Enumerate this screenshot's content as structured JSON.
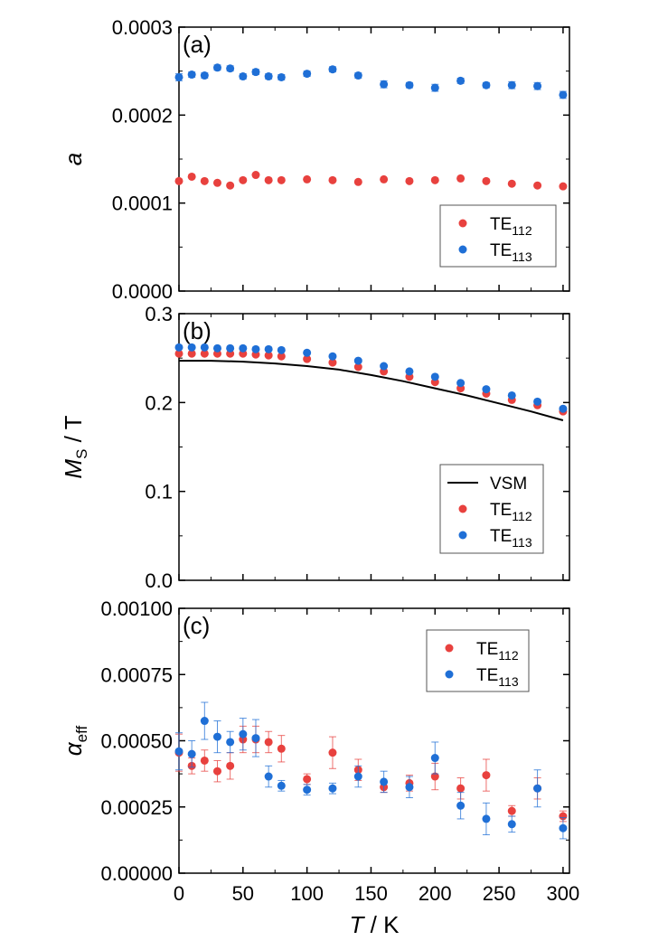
{
  "colors": {
    "te112": "#e8413e",
    "te113": "#1f6fd6",
    "vsm": "#000000"
  },
  "chart_data": [
    {
      "type": "scatter",
      "panel_label": "(a)",
      "ylabel_main": "a",
      "ylabel_sub": "",
      "ylabel_style": "italic",
      "ylim": [
        0,
        0.0003
      ],
      "yticks": [
        0.0,
        0.0001,
        0.0002,
        0.0003
      ],
      "ytick_labels": [
        "0.0000",
        "0.0001",
        "0.0002",
        "0.0003"
      ],
      "xlim": [
        0,
        305
      ],
      "legend_position": "bottom-right",
      "series": [
        {
          "name": "TE",
          "sub": "112",
          "color_key": "te112",
          "x": [
            0,
            10,
            20,
            30,
            40,
            50,
            60,
            70,
            80,
            100,
            120,
            140,
            160,
            180,
            200,
            220,
            240,
            260,
            280,
            300
          ],
          "y": [
            0.000125,
            0.00013,
            0.000125,
            0.000123,
            0.00012,
            0.000126,
            0.000132,
            0.000126,
            0.000126,
            0.000127,
            0.000126,
            0.000124,
            0.000127,
            0.000125,
            0.000126,
            0.000128,
            0.000125,
            0.000122,
            0.00012,
            0.000119
          ],
          "err": []
        },
        {
          "name": "TE",
          "sub": "113",
          "color_key": "te113",
          "x": [
            0,
            10,
            20,
            30,
            40,
            50,
            60,
            70,
            80,
            100,
            120,
            140,
            160,
            180,
            200,
            220,
            240,
            260,
            280,
            300
          ],
          "y": [
            0.000243,
            0.000246,
            0.000245,
            0.000254,
            0.000253,
            0.000244,
            0.000249,
            0.000244,
            0.000243,
            0.000247,
            0.000252,
            0.000245,
            0.000235,
            0.000234,
            0.000231,
            0.000239,
            0.000234,
            0.000234,
            0.000233,
            0.000223
          ],
          "err": [
            4e-06,
            3e-06,
            3e-06,
            3e-06,
            3e-06,
            3e-06,
            3e-06,
            3e-06,
            3e-06,
            3e-06,
            3e-06,
            3e-06,
            4e-06,
            3e-06,
            4e-06,
            3e-06,
            3e-06,
            4e-06,
            4e-06,
            4e-06
          ]
        }
      ]
    },
    {
      "type": "scatter",
      "panel_label": "(b)",
      "ylabel_main": "M",
      "ylabel_sub": "S",
      "ylabel_rest": " / T",
      "ylabel_style": "italic",
      "ylim": [
        0,
        0.3
      ],
      "yticks": [
        0.0,
        0.1,
        0.2,
        0.3
      ],
      "ytick_labels": [
        "0.0",
        "0.1",
        "0.2",
        "0.3"
      ],
      "xlim": [
        0,
        305
      ],
      "legend_position": "bottom-right",
      "line": {
        "name": "VSM",
        "color_key": "vsm",
        "x": [
          0,
          25,
          50,
          75,
          100,
          125,
          150,
          175,
          200,
          225,
          250,
          275,
          300
        ],
        "y": [
          0.247,
          0.247,
          0.246,
          0.244,
          0.241,
          0.237,
          0.231,
          0.224,
          0.216,
          0.208,
          0.199,
          0.19,
          0.18
        ]
      },
      "series": [
        {
          "name": "TE",
          "sub": "112",
          "color_key": "te112",
          "x": [
            0,
            10,
            20,
            30,
            40,
            50,
            60,
            70,
            80,
            100,
            120,
            140,
            160,
            180,
            200,
            220,
            240,
            260,
            280,
            300
          ],
          "y": [
            0.255,
            0.255,
            0.255,
            0.255,
            0.255,
            0.255,
            0.254,
            0.253,
            0.252,
            0.249,
            0.245,
            0.24,
            0.235,
            0.229,
            0.223,
            0.216,
            0.21,
            0.203,
            0.197,
            0.19
          ],
          "err": []
        },
        {
          "name": "TE",
          "sub": "113",
          "color_key": "te113",
          "x": [
            0,
            10,
            20,
            30,
            40,
            50,
            60,
            70,
            80,
            100,
            120,
            140,
            160,
            180,
            200,
            220,
            240,
            260,
            280,
            300
          ],
          "y": [
            0.262,
            0.262,
            0.262,
            0.261,
            0.261,
            0.261,
            0.26,
            0.26,
            0.259,
            0.256,
            0.252,
            0.247,
            0.241,
            0.235,
            0.229,
            0.222,
            0.215,
            0.208,
            0.201,
            0.193
          ],
          "err": []
        }
      ]
    },
    {
      "type": "scatter",
      "panel_label": "(c)",
      "ylabel_main": "α",
      "ylabel_sub": "eff",
      "ylabel_style": "italic",
      "xlabel_main": "T",
      "xlabel_rest": " / K",
      "ylim": [
        0,
        0.001
      ],
      "yticks": [
        0,
        0.00025,
        0.0005,
        0.00075,
        0.001
      ],
      "ytick_labels": [
        "0.00000",
        "0.00025",
        "0.00050",
        "0.00075",
        "0.00100"
      ],
      "xlim": [
        0,
        305
      ],
      "xticks": [
        0,
        50,
        100,
        150,
        200,
        250,
        300
      ],
      "xtick_labels": [
        "0",
        "50",
        "100",
        "150",
        "200",
        "250",
        "300"
      ],
      "legend_position": "top-right",
      "series": [
        {
          "name": "TE",
          "sub": "112",
          "color_key": "te112",
          "x": [
            0,
            10,
            20,
            30,
            40,
            50,
            60,
            70,
            80,
            100,
            120,
            140,
            160,
            180,
            200,
            220,
            240,
            260,
            280,
            300
          ],
          "y": [
            0.000455,
            0.000405,
            0.000425,
            0.000385,
            0.000405,
            0.000505,
            0.000505,
            0.000495,
            0.00047,
            0.000355,
            0.000455,
            0.00039,
            0.000325,
            0.00034,
            0.000365,
            0.00032,
            0.00037,
            0.000235,
            0.00032,
            0.000215
          ],
          "err": [
            7e-05,
            3e-05,
            4e-05,
            4e-05,
            5e-05,
            5e-05,
            5e-05,
            4e-05,
            5e-05,
            2e-05,
            6e-05,
            4e-05,
            2e-05,
            3e-05,
            5e-05,
            4e-05,
            6e-05,
            2e-05,
            4e-05,
            2e-05
          ]
        },
        {
          "name": "TE",
          "sub": "113",
          "color_key": "te113",
          "x": [
            0,
            10,
            20,
            30,
            40,
            50,
            60,
            70,
            80,
            100,
            120,
            140,
            160,
            180,
            200,
            220,
            240,
            260,
            280,
            300
          ],
          "y": [
            0.00046,
            0.00045,
            0.000575,
            0.000515,
            0.000495,
            0.000525,
            0.00051,
            0.000365,
            0.00033,
            0.000315,
            0.00032,
            0.000365,
            0.000345,
            0.000325,
            0.000435,
            0.000255,
            0.000205,
            0.000185,
            0.00032,
            0.00017
          ],
          "err": [
            7e-05,
            5e-05,
            7e-05,
            6e-05,
            4e-05,
            6e-05,
            7e-05,
            4e-05,
            2e-05,
            2e-05,
            2e-05,
            4e-05,
            4e-05,
            4e-05,
            6e-05,
            5e-05,
            6e-05,
            3e-05,
            7e-05,
            4e-05
          ]
        }
      ]
    }
  ]
}
